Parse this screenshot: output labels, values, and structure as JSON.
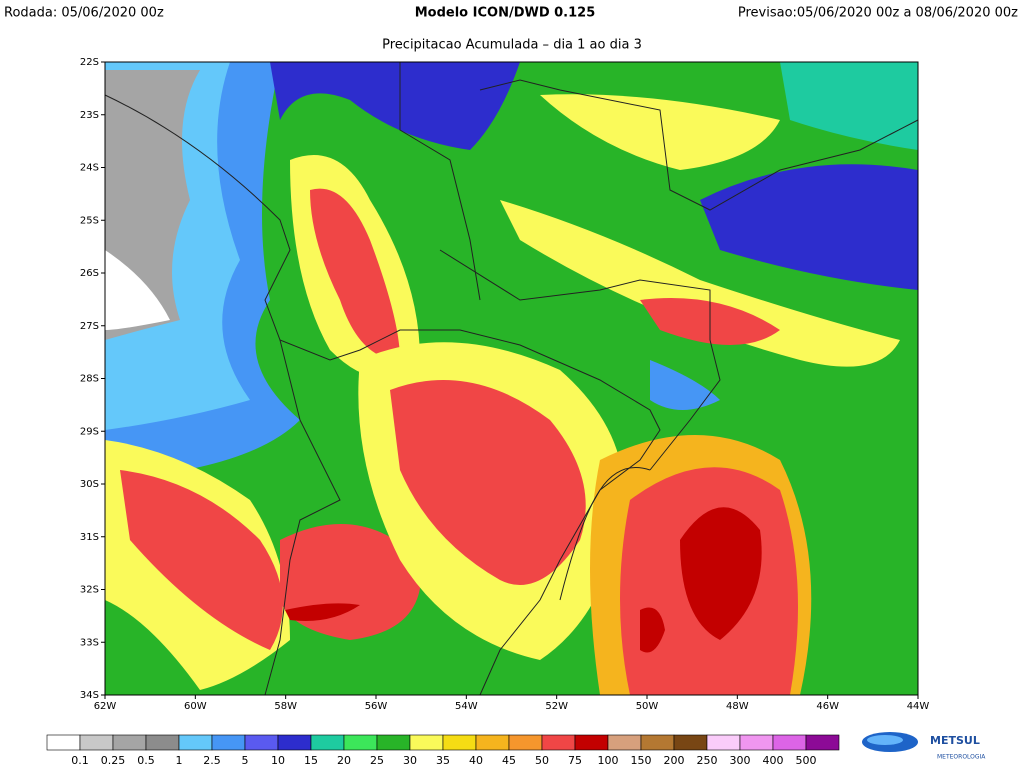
{
  "header": {
    "left": "Rodada: 05/06/2020 00z",
    "center": "Modelo ICON/DWD 0.125",
    "right": "Previsao:05/06/2020 00z a 08/06/2020 00z"
  },
  "subtitle": "Precipitacao Acumulada – dia 1 ao dia 3",
  "map": {
    "lat_labels": [
      "22S",
      "23S",
      "24S",
      "25S",
      "26S",
      "27S",
      "28S",
      "29S",
      "30S",
      "31S",
      "32S",
      "33S",
      "34S"
    ],
    "lon_labels": [
      "62W",
      "60W",
      "58W",
      "56W",
      "54W",
      "52W",
      "50W",
      "48W",
      "46W",
      "44W"
    ]
  },
  "colorbar": {
    "colors": [
      "#ffffff",
      "#c8c8c8",
      "#a5a5a5",
      "#8c8c8c",
      "#64c8fa",
      "#4696f5",
      "#5a5af0",
      "#2d2dcd",
      "#1ecba0",
      "#3ce65a",
      "#28b428",
      "#fafa5a",
      "#f5dc14",
      "#f5b41e",
      "#f5962d",
      "#f04646",
      "#c30000",
      "#d7a07d",
      "#b47832",
      "#784614",
      "#faccfa",
      "#f096f0",
      "#dc64e6",
      "#8c0a96"
    ],
    "labels": [
      "0.1",
      "0.25",
      "0.5",
      "1",
      "2.5",
      "5",
      "10",
      "15",
      "20",
      "25",
      "30",
      "35",
      "40",
      "45",
      "50",
      "75",
      "100",
      "150",
      "200",
      "250",
      "300",
      "400",
      "500"
    ]
  },
  "logo": {
    "name": "METSUL",
    "tagline": "METEOROLOGIA"
  }
}
